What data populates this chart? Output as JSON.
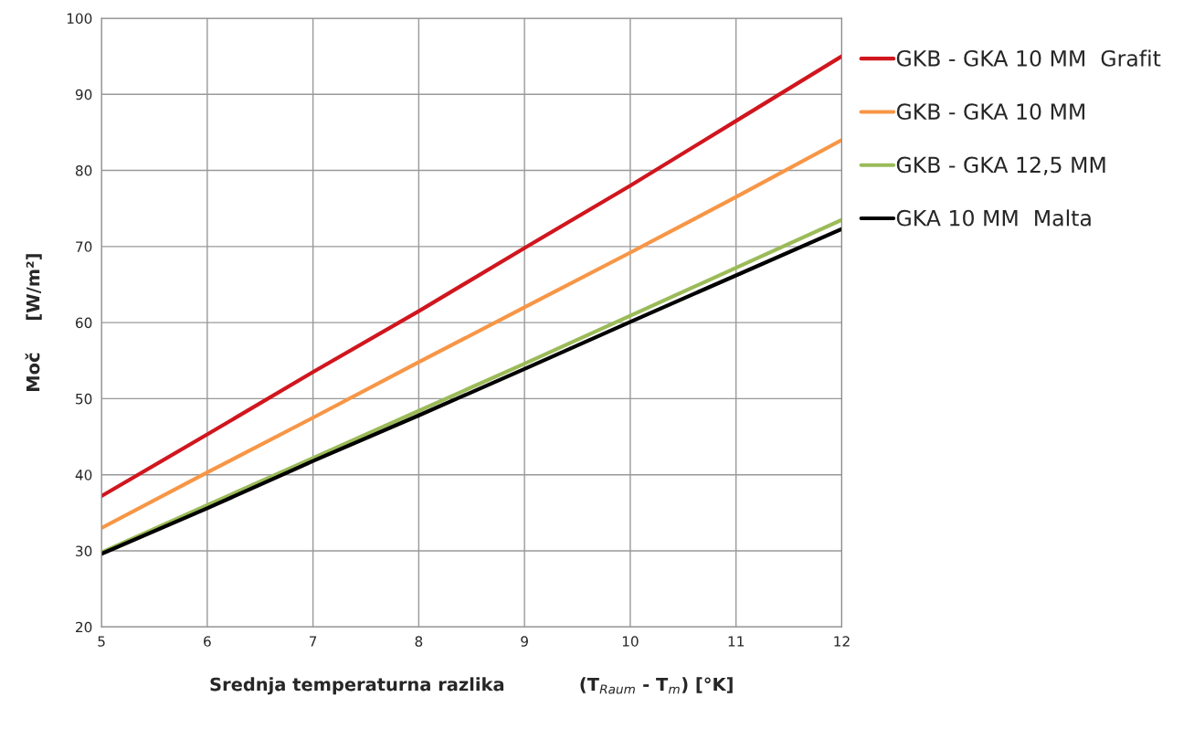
{
  "chart_data": {
    "type": "line",
    "xlabel": "Srednja temperaturna razlika            (T$_{Raum}$ - T$_{m}$) [°K]",
    "ylabel": "Moč     [W/m²]",
    "x": [
      5,
      6,
      7,
      8,
      9,
      10,
      11,
      12
    ],
    "series": [
      {
        "name": "GKB - GKA 10 MM  Grafit",
        "color": "#d0161e",
        "values": [
          37.2,
          45.3,
          53.5,
          61.5,
          69.8,
          78,
          86.5,
          95
        ]
      },
      {
        "name": "GKB - GKA 10 MM",
        "color": "#f79646",
        "values": [
          33,
          40.3,
          47.5,
          54.8,
          62,
          69.2,
          76.5,
          84
        ]
      },
      {
        "name": "GKB - GKA 12,5 MM",
        "color": "#9bbb59",
        "values": [
          29.8,
          36,
          42.2,
          48.4,
          54.6,
          60.9,
          67.2,
          73.5
        ]
      },
      {
        "name": "GKA 10 MM  Malta",
        "color": "#000000",
        "values": [
          29.6,
          35.6,
          41.8,
          47.8,
          53.9,
          60.1,
          66.2,
          72.3
        ]
      }
    ],
    "xlim": [
      5,
      12
    ],
    "xticks": [
      5,
      6,
      7,
      8,
      9,
      10,
      11,
      12
    ],
    "ylim": [
      20,
      100
    ],
    "yticks": [
      20,
      30,
      40,
      50,
      60,
      70,
      80,
      90,
      100
    ],
    "grid": true,
    "legend": "right",
    "marker": "none",
    "line_style": "solid"
  }
}
